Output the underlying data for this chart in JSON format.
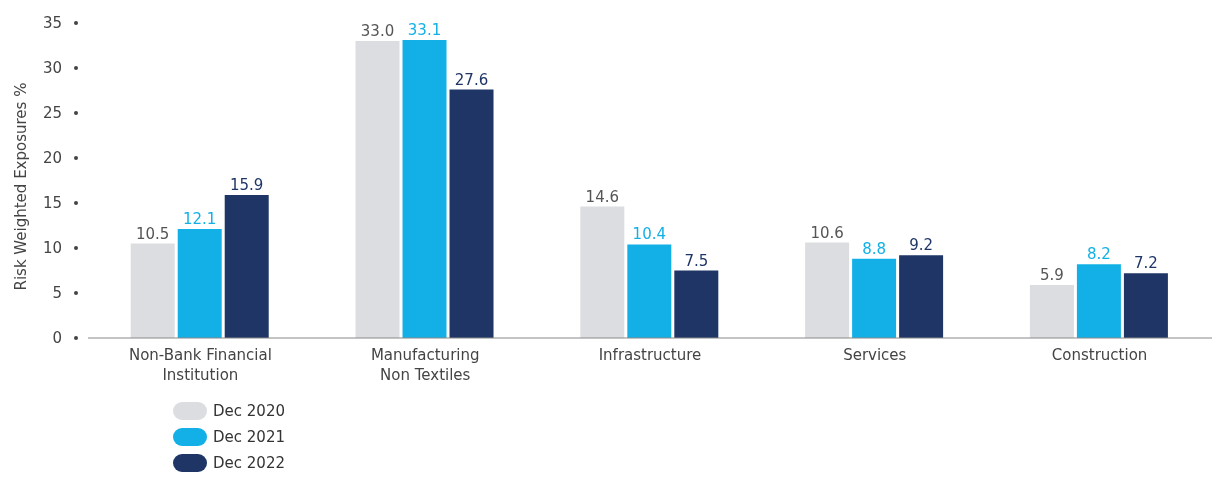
{
  "chart_data": {
    "type": "bar",
    "ylabel": "Risk Weighted Exposures %",
    "categories": [
      "Non-Bank Financial Institution",
      "Manufacturing Non Textiles",
      "Infrastructure",
      "Services",
      "Construction"
    ],
    "series": [
      {
        "name": "Dec 2020",
        "color": "#dcdde0",
        "values": [
          10.5,
          33.0,
          14.6,
          10.6,
          5.9
        ],
        "value_labels": [
          "10.5",
          "33.0",
          "14.6",
          "10.6",
          "5.9"
        ]
      },
      {
        "name": "Dec 2021",
        "color": "#12b0e6",
        "values": [
          12.1,
          33.1,
          10.4,
          8.8,
          8.2
        ],
        "value_labels": [
          "12.1",
          "33.1",
          "10.4",
          "8.8",
          "8.2"
        ]
      },
      {
        "name": "Dec 2022",
        "color": "#1e3566",
        "values": [
          15.9,
          27.6,
          7.5,
          9.2,
          7.2
        ],
        "value_labels": [
          "15.9",
          "27.6",
          "7.5",
          "9.2",
          "7.2"
        ]
      }
    ],
    "ylim": [
      0,
      35
    ],
    "yticks": [
      0,
      5,
      10,
      15,
      20,
      25,
      30,
      35
    ],
    "grid": false,
    "legend": "bottom left"
  }
}
